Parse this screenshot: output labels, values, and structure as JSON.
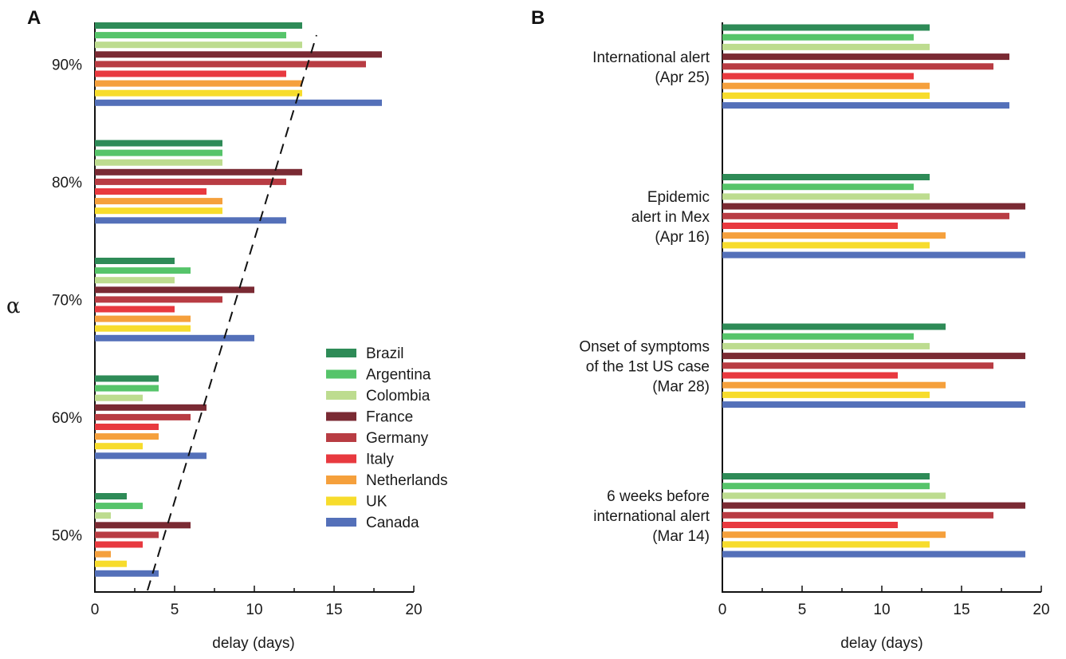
{
  "colors": {
    "Brazil": "#2e8b57",
    "Argentina": "#56c46a",
    "Colombia": "#bddc8f",
    "France": "#7a2a33",
    "Germany": "#b83c43",
    "Italy": "#e8393f",
    "Netherlands": "#f5a03c",
    "UK": "#f7dc2c",
    "Canada": "#5470b9"
  },
  "chart_data": [
    {
      "type": "bar",
      "orientation": "horizontal",
      "panel": "A",
      "xlabel": "delay (days)",
      "ylabel": "α",
      "xlim": [
        0,
        20
      ],
      "xticks": [
        "0",
        "5",
        "10",
        "15",
        "20"
      ],
      "categories": [
        "90%",
        "80%",
        "70%",
        "60%",
        "50%"
      ],
      "series": [
        {
          "name": "Brazil",
          "values": [
            13,
            8,
            5,
            4,
            2
          ]
        },
        {
          "name": "Argentina",
          "values": [
            12,
            8,
            6,
            4,
            3
          ]
        },
        {
          "name": "Colombia",
          "values": [
            13,
            8,
            5,
            3,
            1
          ]
        },
        {
          "name": "France",
          "values": [
            18,
            13,
            10,
            7,
            6
          ]
        },
        {
          "name": "Germany",
          "values": [
            17,
            12,
            8,
            6,
            4
          ]
        },
        {
          "name": "Italy",
          "values": [
            12,
            7,
            5,
            4,
            3
          ]
        },
        {
          "name": "Netherlands",
          "values": [
            13,
            8,
            6,
            4,
            1
          ]
        },
        {
          "name": "UK",
          "values": [
            13,
            8,
            6,
            3,
            2
          ]
        },
        {
          "name": "Canada",
          "values": [
            18,
            12,
            10,
            7,
            4
          ]
        }
      ],
      "trend_line": {
        "style": "dashed",
        "from_delay": 3.3,
        "to_delay": 13.9
      },
      "legend": {
        "placement": "bottom-right",
        "entries": [
          "Brazil",
          "Argentina",
          "Colombia",
          "France",
          "Germany",
          "Italy",
          "Netherlands",
          "UK",
          "Canada"
        ]
      }
    },
    {
      "type": "bar",
      "orientation": "horizontal",
      "panel": "B",
      "xlabel": "delay (days)",
      "xlim": [
        0,
        20
      ],
      "xticks": [
        "0",
        "5",
        "10",
        "15",
        "20"
      ],
      "categories": [
        {
          "lines": [
            "International alert",
            "(Apr 25)"
          ]
        },
        {
          "lines": [
            "Epidemic",
            "alert in Mex",
            "(Apr 16)"
          ]
        },
        {
          "lines": [
            "Onset of symptoms",
            "of the 1st US case",
            "(Mar 28)"
          ]
        },
        {
          "lines": [
            "6 weeks before",
            "international alert",
            "(Mar 14)"
          ]
        }
      ],
      "series": [
        {
          "name": "Brazil",
          "values": [
            13,
            13,
            14,
            13
          ]
        },
        {
          "name": "Argentina",
          "values": [
            12,
            12,
            12,
            13
          ]
        },
        {
          "name": "Colombia",
          "values": [
            13,
            13,
            13,
            14
          ]
        },
        {
          "name": "France",
          "values": [
            18,
            19,
            19,
            19
          ]
        },
        {
          "name": "Germany",
          "values": [
            17,
            18,
            17,
            17
          ]
        },
        {
          "name": "Italy",
          "values": [
            12,
            11,
            11,
            11
          ]
        },
        {
          "name": "Netherlands",
          "values": [
            13,
            14,
            14,
            14
          ]
        },
        {
          "name": "UK",
          "values": [
            13,
            13,
            13,
            13
          ]
        },
        {
          "name": "Canada",
          "values": [
            18,
            19,
            19,
            19
          ]
        }
      ]
    }
  ]
}
